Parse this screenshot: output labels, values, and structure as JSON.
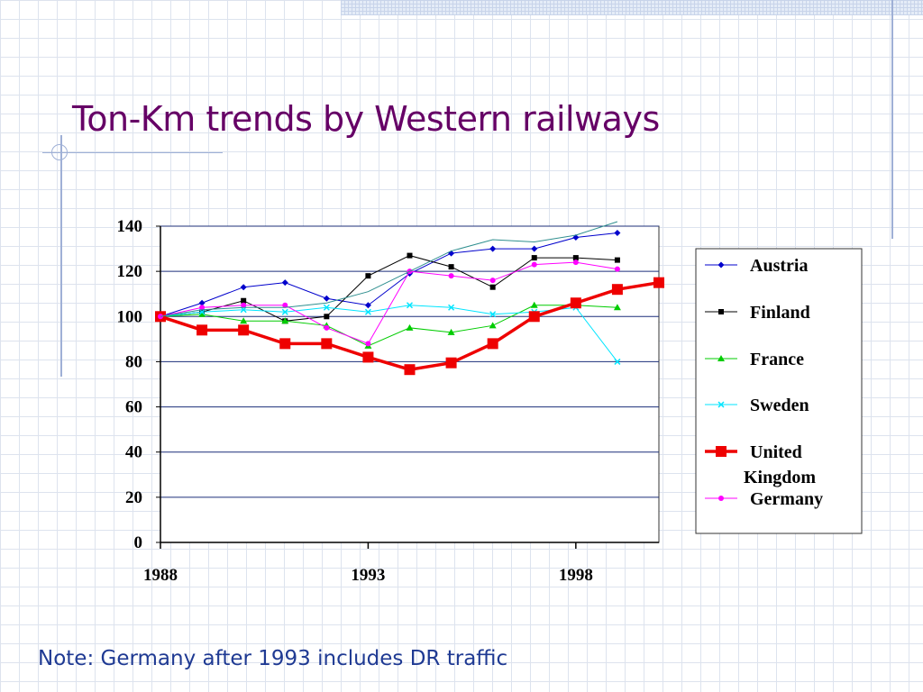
{
  "slide": {
    "title": "Ton-Km trends by Western railways",
    "note": "Note: Germany after 1993 includes DR traffic"
  },
  "chart_data": {
    "type": "line",
    "title": "",
    "xlabel": "",
    "ylabel": "",
    "xlim": [
      1988,
      2000
    ],
    "ylim": [
      0,
      140
    ],
    "x_ticks": [
      1988,
      1993,
      1998
    ],
    "y_ticks": [
      0,
      20,
      40,
      60,
      80,
      100,
      120,
      140
    ],
    "grid": "horizontal",
    "legend_position": "right",
    "series": [
      {
        "name": "Austria",
        "color": "#0000cc",
        "marker": "diamond",
        "points": [
          [
            1988,
            100
          ],
          [
            1989,
            106
          ],
          [
            1990,
            113
          ],
          [
            1991,
            115
          ],
          [
            1992,
            108
          ],
          [
            1993,
            105
          ],
          [
            1994,
            119
          ],
          [
            1995,
            128
          ],
          [
            1996,
            130
          ],
          [
            1997,
            130
          ],
          [
            1998,
            135
          ],
          [
            1999,
            137
          ]
        ]
      },
      {
        "name": "Finland",
        "color": "#000000",
        "marker": "square",
        "points": [
          [
            1988,
            100
          ],
          [
            1989,
            102
          ],
          [
            1990,
            107
          ],
          [
            1991,
            98
          ],
          [
            1992,
            100
          ],
          [
            1993,
            118
          ],
          [
            1994,
            127
          ],
          [
            1995,
            122
          ],
          [
            1996,
            113
          ],
          [
            1997,
            126
          ],
          [
            1998,
            126
          ],
          [
            1999,
            125
          ]
        ]
      },
      {
        "name": "France",
        "color": "#00cc00",
        "marker": "triangle",
        "points": [
          [
            1988,
            100
          ],
          [
            1989,
            101
          ],
          [
            1990,
            98
          ],
          [
            1991,
            98
          ],
          [
            1992,
            96
          ],
          [
            1993,
            87
          ],
          [
            1994,
            95
          ],
          [
            1995,
            93
          ],
          [
            1996,
            96
          ],
          [
            1997,
            105
          ],
          [
            1998,
            105
          ],
          [
            1999,
            104
          ]
        ]
      },
      {
        "name": "Sweden",
        "color": "#00e5ff",
        "marker": "x",
        "points": [
          [
            1988,
            100
          ],
          [
            1989,
            102
          ],
          [
            1990,
            103
          ],
          [
            1991,
            102
          ],
          [
            1992,
            104
          ],
          [
            1993,
            102
          ],
          [
            1994,
            105
          ],
          [
            1995,
            104
          ],
          [
            1996,
            101
          ],
          [
            1997,
            102
          ],
          [
            1998,
            104
          ],
          [
            1999,
            80
          ]
        ]
      },
      {
        "name": "United Kingdom",
        "legend_lines": [
          "United",
          "Kingdom"
        ],
        "color": "#ee0000",
        "marker": "big-square",
        "points": [
          [
            1988,
            100
          ],
          [
            1989,
            94
          ],
          [
            1990,
            94
          ],
          [
            1991,
            88
          ],
          [
            1992,
            88
          ],
          [
            1993,
            82
          ],
          [
            1994,
            76.5
          ],
          [
            1995,
            79.5
          ],
          [
            1996,
            88
          ],
          [
            1997,
            100
          ],
          [
            1998,
            106
          ],
          [
            1999,
            112
          ],
          [
            2000,
            115
          ]
        ]
      },
      {
        "name": "Germany",
        "color": "#ff00ff",
        "marker": "circle",
        "points": [
          [
            1988,
            100
          ],
          [
            1989,
            104
          ],
          [
            1990,
            105
          ],
          [
            1991,
            105
          ],
          [
            1992,
            95
          ],
          [
            1993,
            88
          ],
          [
            1994,
            120
          ],
          [
            1995,
            118
          ],
          [
            1996,
            116
          ],
          [
            1997,
            123
          ],
          [
            1998,
            124
          ],
          [
            1999,
            121
          ]
        ]
      },
      {
        "name": "",
        "color": "#2f8f8f",
        "marker": "none",
        "in_legend": false,
        "points": [
          [
            1988,
            100
          ],
          [
            1989,
            103
          ],
          [
            1990,
            104
          ],
          [
            1991,
            104
          ],
          [
            1992,
            106
          ],
          [
            1993,
            111
          ],
          [
            1994,
            120
          ],
          [
            1995,
            129
          ],
          [
            1996,
            134
          ],
          [
            1997,
            133
          ],
          [
            1998,
            136
          ],
          [
            1999,
            142
          ]
        ]
      }
    ]
  }
}
